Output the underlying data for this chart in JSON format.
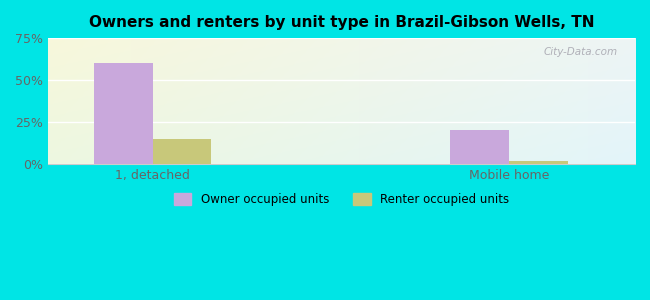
{
  "title": "Owners and renters by unit type in Brazil-Gibson Wells, TN",
  "categories": [
    "1, detached",
    "Mobile home"
  ],
  "owner_values": [
    60.0,
    20.0
  ],
  "renter_values": [
    15.0,
    1.5
  ],
  "owner_color": "#c9a8dc",
  "renter_color": "#c8c87a",
  "ylim": [
    0,
    75
  ],
  "yticks": [
    0,
    25,
    50,
    75
  ],
  "ytick_labels": [
    "0%",
    "25%",
    "50%",
    "75%"
  ],
  "bar_width": 0.28,
  "background_cyan": "#00e5e5",
  "watermark": "City-Data.com",
  "legend_labels": [
    "Owner occupied units",
    "Renter occupied units"
  ],
  "x_positions": [
    0.5,
    2.2
  ]
}
